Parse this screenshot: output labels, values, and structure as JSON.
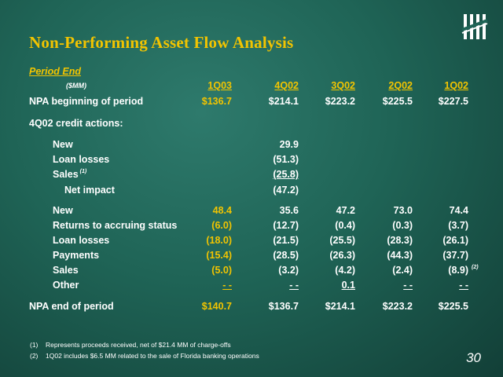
{
  "title": "Non-Performing Asset Flow Analysis",
  "period_end": "Period End",
  "unit": "($MM)",
  "columns": [
    "1Q03",
    "4Q02",
    "3Q02",
    "2Q02",
    "1Q02"
  ],
  "rows": {
    "npa_begin": {
      "label": "NPA beginning of period",
      "v": [
        "$136.7",
        "$214.1",
        "$223.2",
        "$225.5",
        "$227.5"
      ]
    },
    "credit_actions": {
      "label": "4Q02 credit actions:"
    },
    "ca_new": {
      "label": "New",
      "v": [
        "",
        "29.9",
        "",
        "",
        ""
      ]
    },
    "ca_losses": {
      "label": "Loan losses",
      "v": [
        "",
        "(51.3)",
        "",
        "",
        ""
      ]
    },
    "ca_sales": {
      "label": "Sales",
      "sup": "(1)",
      "v": [
        "",
        "(25.8)",
        "",
        "",
        ""
      ]
    },
    "ca_net": {
      "label": "Net impact",
      "v": [
        "",
        "(47.2)",
        "",
        "",
        ""
      ]
    },
    "new": {
      "label": "New",
      "v": [
        "48.4",
        "35.6",
        "47.2",
        "73.0",
        "74.4"
      ]
    },
    "returns": {
      "label": "Returns to accruing status",
      "v": [
        "(6.0)",
        "(12.7)",
        "(0.4)",
        "(0.3)",
        "(3.7)"
      ]
    },
    "losses": {
      "label": "Loan losses",
      "v": [
        "(18.0)",
        "(21.5)",
        "(25.5)",
        "(28.3)",
        "(26.1)"
      ]
    },
    "payments": {
      "label": "Payments",
      "v": [
        "(15.4)",
        "(28.5)",
        "(26.3)",
        "(44.3)",
        "(37.7)"
      ]
    },
    "sales": {
      "label": "Sales",
      "v": [
        "(5.0)",
        "(3.2)",
        "(4.2)",
        "(2.4)",
        "(8.9)"
      ],
      "sup": "(2)"
    },
    "other": {
      "label": "Other",
      "v": [
        "- -",
        "- -",
        "0.1",
        "- -",
        "- -"
      ]
    },
    "npa_end": {
      "label": "NPA end of period",
      "v": [
        "$140.7",
        "$136.7",
        "$214.1",
        "$223.2",
        "$225.5"
      ]
    }
  },
  "footnotes": [
    {
      "num": "(1)",
      "text": "Represents proceeds received, net of $21.4 MM of charge-offs"
    },
    {
      "num": "(2)",
      "text": "1Q02 includes $6.5 MM related to the sale of Florida banking operations"
    }
  ],
  "page_number": "30",
  "colors": {
    "accent": "#f2c400",
    "background": "#1f6456",
    "text": "#ffffff"
  }
}
